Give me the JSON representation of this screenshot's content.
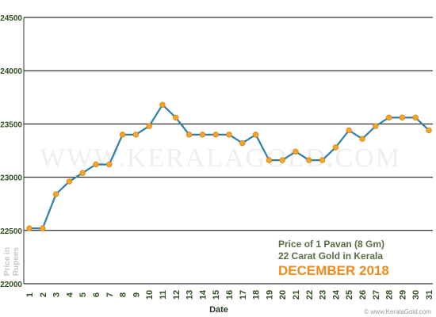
{
  "chart_data": {
    "type": "line",
    "xlabel": "Date",
    "ylabel": [
      "Price in",
      "Rupees"
    ],
    "ylim": [
      22000,
      24500
    ],
    "y_ticks": [
      22000,
      22500,
      23000,
      23500,
      24000,
      24500
    ],
    "grid": true,
    "x": [
      1,
      2,
      3,
      4,
      5,
      6,
      7,
      8,
      9,
      10,
      11,
      12,
      13,
      14,
      15,
      16,
      17,
      18,
      19,
      20,
      21,
      22,
      23,
      24,
      25,
      26,
      27,
      28,
      29,
      30,
      31
    ],
    "values": [
      22520,
      22520,
      22840,
      22960,
      23040,
      23120,
      23120,
      23400,
      23400,
      23480,
      23680,
      23560,
      23400,
      23400,
      23400,
      23400,
      23320,
      23400,
      23160,
      23160,
      23240,
      23160,
      23160,
      23280,
      23440,
      23360,
      23480,
      23560,
      23560,
      23560,
      23440
    ],
    "annotation": {
      "line1": "Price of 1 Pavan (8 Gm)",
      "line2": "22 Carat Gold in Kerala",
      "line3": "DECEMBER 2018"
    },
    "watermark": "WWW.KERALAGOLD.COM",
    "credit": "© www.KeralaGold.com",
    "colors": {
      "line": "#2f7fa8",
      "marker": "#f5a623",
      "marker_edge": "#d9821a",
      "grid": "#000000",
      "accent": "#f08a1c"
    }
  }
}
